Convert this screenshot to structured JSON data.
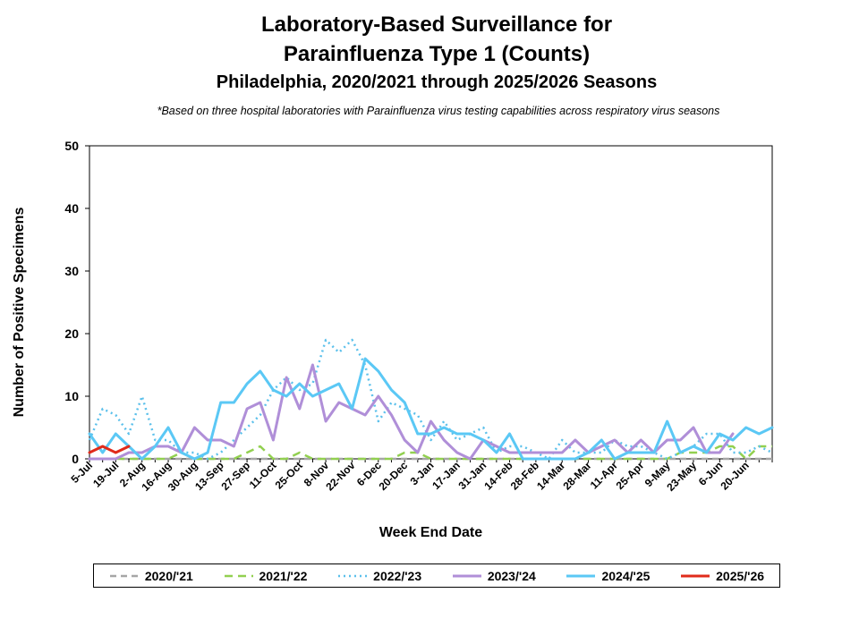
{
  "header": {
    "title_line1": "Laboratory-Based Surveillance for",
    "title_line2": "Parainfluenza Type 1 (Counts)",
    "subtitle": "Philadelphia, 2020/2021 through 2025/2026 Seasons",
    "note": "*Based on three hospital laboratories with Parainfluenza virus testing capabilities across respiratory virus seasons"
  },
  "chart_data": {
    "type": "line",
    "title": "Laboratory-Based Surveillance for Parainfluenza Type 1 (Counts)",
    "subtitle": "Philadelphia, 2020/2021 through 2025/2026 Seasons",
    "xlabel": "Week End Date",
    "ylabel": "Number of Positive Specimens",
    "ylim": [
      0,
      50
    ],
    "yticks": [
      0,
      10,
      20,
      30,
      40,
      50
    ],
    "grid": false,
    "legend_position": "bottom",
    "x_tick_labels": [
      "5-Jul",
      "19-Jul",
      "2-Aug",
      "16-Aug",
      "30-Aug",
      "13-Sep",
      "27-Sep",
      "11-Oct",
      "25-Oct",
      "8-Nov",
      "22-Nov",
      "6-Dec",
      "20-Dec",
      "3-Jan",
      "17-Jan",
      "31-Jan",
      "14-Feb",
      "28-Feb",
      "14-Mar",
      "28-Mar",
      "11-Apr",
      "25-Apr",
      "9-May",
      "23-May",
      "6-Jun",
      "20-Jun"
    ],
    "num_weeks": 53,
    "series": [
      {
        "name": "2020/'21",
        "color": "#a6a6a6",
        "dash": "7,5",
        "width": 2.5,
        "values": [
          0,
          0,
          0,
          0,
          0,
          0,
          0,
          0,
          0,
          0,
          0,
          0,
          0,
          0,
          0,
          0,
          0,
          0,
          0,
          0,
          0,
          0,
          0,
          0,
          0,
          0,
          0,
          0,
          0,
          0,
          0,
          0,
          0,
          0,
          0,
          0,
          0,
          0,
          0,
          0,
          0,
          0,
          0,
          0,
          0,
          0,
          0,
          0,
          0,
          0,
          0,
          0,
          0
        ]
      },
      {
        "name": "2021/'22",
        "color": "#92d050",
        "dash": "9,6",
        "width": 2.5,
        "values": [
          0,
          0,
          0,
          0,
          0,
          0,
          0,
          1,
          0,
          0,
          0,
          0,
          1,
          2,
          0,
          0,
          1,
          0,
          0,
          0,
          0,
          0,
          0,
          0,
          1,
          1,
          0,
          0,
          0,
          0,
          0,
          0,
          0,
          0,
          0,
          0,
          0,
          0,
          0,
          0,
          0,
          0,
          0,
          0,
          0,
          1,
          1,
          1,
          2,
          2,
          0,
          2,
          2
        ]
      },
      {
        "name": "2022/'23",
        "color": "#5bc0eb",
        "dash": "2,4",
        "width": 2.5,
        "values": [
          3,
          8,
          7,
          4,
          10,
          3,
          3,
          1,
          1,
          0,
          1,
          3,
          5,
          7,
          11,
          13,
          11,
          12,
          19,
          17,
          19,
          15,
          6,
          9,
          8,
          7,
          3,
          6,
          3,
          4,
          5,
          1,
          2,
          2,
          1,
          0,
          3,
          1,
          1,
          1,
          3,
          2,
          2,
          1,
          0,
          1,
          2,
          4,
          4,
          1,
          1,
          2,
          1
        ]
      },
      {
        "name": "2023/'24",
        "color": "#b08fd8",
        "dash": "",
        "width": 3,
        "values": [
          0,
          0,
          0,
          1,
          1,
          2,
          2,
          1,
          5,
          3,
          3,
          2,
          8,
          9,
          3,
          13,
          8,
          15,
          6,
          9,
          8,
          7,
          10,
          7,
          3,
          1,
          6,
          3,
          1,
          0,
          3,
          2,
          1,
          1,
          1,
          1,
          1,
          3,
          1,
          2,
          3,
          1,
          3,
          1,
          3,
          3,
          5,
          1,
          1,
          4
        ]
      },
      {
        "name": "2024/'25",
        "color": "#5bc8f5",
        "dash": "",
        "width": 3,
        "values": [
          4,
          1,
          4,
          2,
          0,
          2,
          5,
          1,
          0,
          1,
          9,
          9,
          12,
          14,
          11,
          10,
          12,
          10,
          11,
          12,
          8,
          16,
          14,
          11,
          9,
          4,
          4,
          5,
          4,
          4,
          3,
          1,
          4,
          0,
          0,
          0,
          0,
          0,
          1,
          3,
          0,
          1,
          1,
          1,
          6,
          1,
          2,
          1,
          4,
          3,
          5,
          4,
          5
        ]
      },
      {
        "name": "2025/'26",
        "color": "#e02b1b",
        "dash": "",
        "width": 3,
        "values": [
          1,
          2,
          1,
          2
        ]
      }
    ]
  }
}
